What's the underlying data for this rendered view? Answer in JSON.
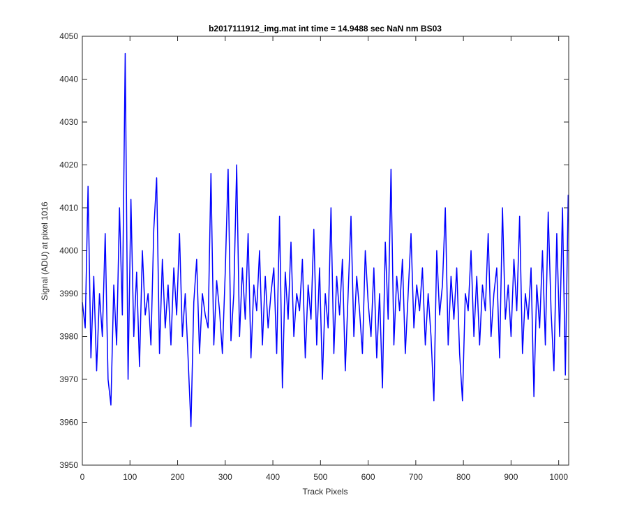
{
  "chart_data": {
    "type": "line",
    "title": "b2017111912_img.mat int time = 14.9488 sec  NaN nm BS03",
    "x_label": "Track Pixels",
    "y_label": "Signal (ADU) at pixel 1016",
    "xlim": [
      0,
      1021
    ],
    "ylim": [
      3950,
      4050
    ],
    "xticks": [
      0,
      100,
      200,
      300,
      400,
      500,
      600,
      700,
      800,
      900,
      1000
    ],
    "yticks": [
      3950,
      3960,
      3970,
      3980,
      3990,
      4000,
      4010,
      4020,
      4030,
      4040,
      4050
    ],
    "grid": false,
    "x": [
      0,
      6,
      12,
      18,
      24,
      30,
      36,
      42,
      48,
      54,
      60,
      66,
      72,
      78,
      84,
      90,
      96,
      102,
      108,
      114,
      120,
      126,
      132,
      138,
      144,
      150,
      156,
      162,
      168,
      174,
      180,
      186,
      192,
      198,
      204,
      210,
      216,
      222,
      228,
      234,
      240,
      246,
      252,
      258,
      264,
      270,
      276,
      282,
      288,
      294,
      300,
      306,
      312,
      318,
      324,
      330,
      336,
      342,
      348,
      354,
      360,
      366,
      372,
      378,
      384,
      390,
      396,
      402,
      408,
      414,
      420,
      426,
      432,
      438,
      444,
      450,
      456,
      462,
      468,
      474,
      480,
      486,
      492,
      498,
      504,
      510,
      516,
      522,
      528,
      534,
      540,
      546,
      552,
      558,
      564,
      570,
      576,
      582,
      588,
      594,
      600,
      606,
      612,
      618,
      624,
      630,
      636,
      642,
      648,
      654,
      660,
      666,
      672,
      678,
      684,
      690,
      696,
      702,
      708,
      714,
      720,
      726,
      732,
      738,
      744,
      750,
      756,
      762,
      768,
      774,
      780,
      786,
      792,
      798,
      804,
      810,
      816,
      822,
      828,
      834,
      840,
      846,
      852,
      858,
      864,
      870,
      876,
      882,
      888,
      894,
      900,
      906,
      912,
      918,
      924,
      930,
      936,
      942,
      948,
      954,
      960,
      966,
      972,
      978,
      984,
      990,
      996,
      1002,
      1008,
      1014,
      1020
    ],
    "series": [
      {
        "name": "signal",
        "color": "#0000ff",
        "values": [
          3988,
          3982,
          4015,
          3975,
          3994,
          3972,
          3990,
          3980,
          4004,
          3970,
          3964,
          3992,
          3978,
          4010,
          3985,
          4046,
          3970,
          4012,
          3980,
          3995,
          3973,
          4000,
          3985,
          3990,
          3978,
          4005,
          4017,
          3976,
          3998,
          3982,
          3992,
          3978,
          3996,
          3985,
          4004,
          3980,
          3990,
          3975,
          3959,
          3988,
          3998,
          3976,
          3990,
          3985,
          3982,
          4018,
          3978,
          3993,
          3986,
          3976,
          3995,
          4019,
          3979,
          3990,
          4020,
          3980,
          3996,
          3984,
          4004,
          3975,
          3992,
          3986,
          4000,
          3978,
          3994,
          3982,
          3990,
          3996,
          3976,
          4008,
          3968,
          3995,
          3984,
          4002,
          3980,
          3990,
          3986,
          3998,
          3975,
          3992,
          3984,
          4005,
          3978,
          3996,
          3970,
          3990,
          3982,
          4010,
          3976,
          3994,
          3985,
          3998,
          3972,
          3990,
          4008,
          3980,
          3994,
          3986,
          3976,
          4000,
          3988,
          3980,
          3996,
          3975,
          3990,
          3968,
          4002,
          3984,
          4019,
          3978,
          3994,
          3986,
          3998,
          3976,
          3990,
          4004,
          3982,
          3992,
          3986,
          3996,
          3978,
          3990,
          3980,
          3965,
          4000,
          3985,
          3992,
          4010,
          3978,
          3994,
          3984,
          3996,
          3976,
          3965,
          3990,
          3986,
          4000,
          3980,
          3994,
          3978,
          3992,
          3986,
          4004,
          3980,
          3990,
          3996,
          3975,
          4010,
          3984,
          3992,
          3980,
          3998,
          3986,
          4008,
          3976,
          3990,
          3984,
          3996,
          3966,
          3992,
          3982,
          4000,
          3978,
          4009,
          3986,
          3972,
          4004,
          3980,
          4010,
          3971,
          4013
        ]
      }
    ]
  }
}
